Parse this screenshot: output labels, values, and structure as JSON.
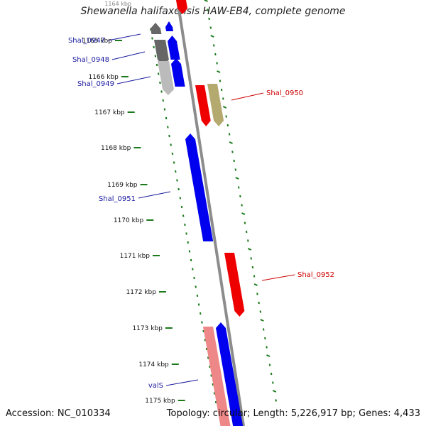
{
  "title": "Shewanella halifaxensis HAW-EB4, complete genome",
  "footer": {
    "accession_label": "Accession:",
    "accession_value": "NC_010334",
    "topology_label": "Topology:",
    "topology_value": "circular",
    "length_label": "Length:",
    "length_value": "5,226,917 bp",
    "genes_label": "Genes:",
    "genes_value": "4,433"
  },
  "colors": {
    "backbone": "#8c8c8c",
    "forward_gene": "#0000ee",
    "reverse_gene": "#ee0000",
    "tick": "#1a7a1a",
    "forward_label": "#1a1aa0",
    "reverse_label": "#cc0000",
    "pseudo_dark": "#666666",
    "pseudo_light": "#bbbbbb",
    "rna_pink": "#ee8888",
    "olive": "#b4aa70"
  },
  "scale": {
    "unit": "kbp",
    "first_label": "1164 kbp",
    "ticks": [
      "1165 kbp",
      "1166 kbp",
      "1167 kbp",
      "1168 kbp",
      "1169 kbp",
      "1170 kbp",
      "1171 kbp",
      "1172 kbp",
      "1173 kbp",
      "1174 kbp",
      "1175 kbp"
    ]
  },
  "genes": [
    {
      "name": "Shal_0947",
      "strand": "forward",
      "label_color": "forward"
    },
    {
      "name": "Shal_0948",
      "strand": "forward",
      "label_color": "forward"
    },
    {
      "name": "Shal_0949",
      "strand": "forward",
      "label_color": "forward"
    },
    {
      "name": "Shal_0950",
      "strand": "reverse",
      "label_color": "reverse"
    },
    {
      "name": "Shal_0951",
      "strand": "forward",
      "label_color": "forward"
    },
    {
      "name": "Shal_0952",
      "strand": "reverse",
      "label_color": "reverse"
    },
    {
      "name": "valS",
      "strand": "forward",
      "label_color": "forward"
    }
  ]
}
